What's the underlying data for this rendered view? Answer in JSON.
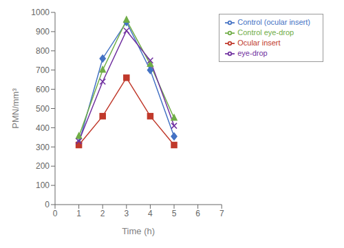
{
  "chart_data": {
    "type": "line",
    "xlabel": "Time (h)",
    "ylabel": "PMN/mm³",
    "xlim": [
      0,
      7
    ],
    "ylim": [
      0,
      1000
    ],
    "xticks": [
      0,
      1,
      2,
      3,
      4,
      5,
      6,
      7
    ],
    "yticks": [
      0,
      100,
      200,
      300,
      400,
      500,
      600,
      700,
      800,
      900,
      1000
    ],
    "grid": false,
    "legend": "upper right",
    "x": [
      1,
      2,
      3,
      4,
      5
    ],
    "series": [
      {
        "name": "Control (ocular insert)",
        "color": "#4472C4",
        "marker": "diamond",
        "values": [
          320,
          760,
          950,
          700,
          355
        ]
      },
      {
        "name": "Ocular insert",
        "color": "#C0392B",
        "marker": "square",
        "values": [
          310,
          460,
          660,
          460,
          310
        ]
      },
      {
        "name": "Control eye-drop",
        "color": "#70AD47",
        "marker": "triangle",
        "values": [
          355,
          700,
          960,
          730,
          450
        ]
      },
      {
        "name": "eye-drop",
        "color": "#7030A0",
        "marker": "x",
        "values": [
          330,
          640,
          905,
          750,
          410
        ]
      }
    ]
  }
}
